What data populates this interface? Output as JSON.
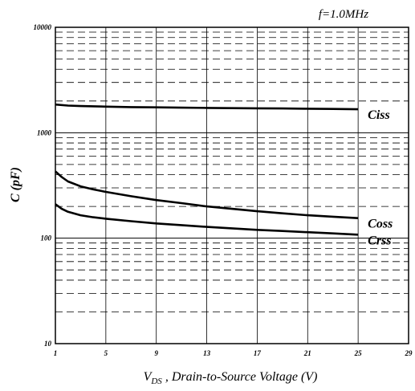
{
  "chart_data": {
    "type": "line",
    "annotation": "f=1.0MHz",
    "xlabel_symbol": "V",
    "xlabel_subscript": "DS",
    "xlabel_rest": " , Drain-to-Source Voltage (V)",
    "ylabel": "C (pF)",
    "x_scale": "linear",
    "y_scale": "log",
    "xlim": [
      1,
      29
    ],
    "ylim": [
      10,
      10000
    ],
    "x_ticks": [
      1,
      5,
      9,
      13,
      17,
      21,
      25,
      29
    ],
    "y_ticks": [
      {
        "value": 10,
        "label": "10"
      },
      {
        "value": 100,
        "label": "100"
      },
      {
        "value": 1000,
        "label": "1000"
      },
      {
        "value": 10000,
        "label": "10000"
      }
    ],
    "grid": true,
    "series": [
      {
        "name": "Ciss",
        "x": [
          1,
          2,
          3,
          5,
          7,
          9,
          11,
          13,
          15,
          17,
          19,
          21,
          23,
          25
        ],
        "y": [
          1850,
          1810,
          1790,
          1770,
          1750,
          1740,
          1730,
          1720,
          1710,
          1705,
          1700,
          1690,
          1680,
          1670
        ]
      },
      {
        "name": "Coss",
        "x": [
          1,
          1.5,
          2,
          3,
          4,
          5,
          7,
          9,
          11,
          13,
          15,
          17,
          19,
          21,
          23,
          25
        ],
        "y": [
          430,
          380,
          345,
          310,
          290,
          275,
          250,
          230,
          215,
          200,
          190,
          180,
          172,
          165,
          160,
          155
        ]
      },
      {
        "name": "Crss",
        "x": [
          1,
          1.5,
          2,
          3,
          4,
          5,
          7,
          9,
          11,
          13,
          15,
          17,
          19,
          21,
          23,
          25
        ],
        "y": [
          210,
          190,
          178,
          165,
          158,
          153,
          145,
          138,
          133,
          128,
          124,
          120,
          117,
          114,
          111,
          108
        ]
      }
    ]
  }
}
